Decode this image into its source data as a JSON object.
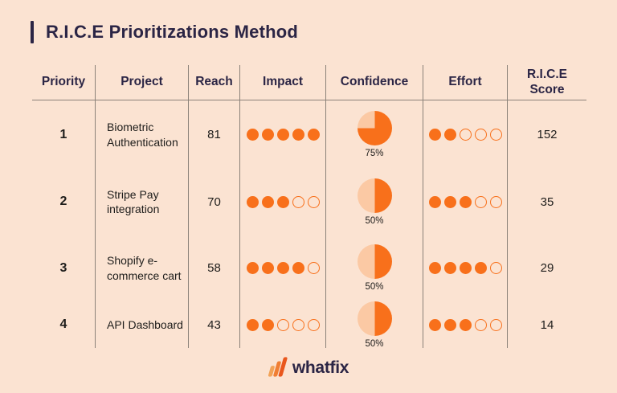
{
  "title": "R.I.C.E Prioritizations Method",
  "colors": {
    "background": "#FBE3D2",
    "navy": "#2B2545",
    "orange": "#F8701B",
    "pie_dark": "#F8701B",
    "pie_light": "#FBC9A4",
    "border": "#8B8279",
    "text_dark": "#1E1D1B",
    "logo_bars": [
      "#F2A358",
      "#F07E33",
      "#E9571D"
    ]
  },
  "footer": {
    "logo_text": "whatfix"
  },
  "chart_data": {
    "type": "table",
    "title": "R.I.C.E Prioritizations Method",
    "columns": [
      "Priority",
      "Project",
      "Reach",
      "Impact",
      "Confidence",
      "Effort",
      "R.I.C.E Score"
    ],
    "rating_scale": 5,
    "legend_note": "Impact and Effort rendered as 5-dot ratings; Confidence rendered as pie chart with percent label",
    "rows": [
      {
        "priority": "1",
        "project": "Biometric Authentication",
        "reach": "81",
        "impact_filled": 5,
        "impact_total": 5,
        "confidence_percent": 75,
        "confidence_label": "75%",
        "effort_filled": 2,
        "effort_total": 5,
        "score": "152"
      },
      {
        "priority": "2",
        "project": "Stripe Pay integration",
        "reach": "70",
        "impact_filled": 3,
        "impact_total": 5,
        "confidence_percent": 50,
        "confidence_label": "50%",
        "effort_filled": 3,
        "effort_total": 5,
        "score": "35"
      },
      {
        "priority": "3",
        "project": "Shopify e-commerce cart",
        "reach": "58",
        "impact_filled": 4,
        "impact_total": 5,
        "confidence_percent": 50,
        "confidence_label": "50%",
        "effort_filled": 4,
        "effort_total": 5,
        "score": "29"
      },
      {
        "priority": "4",
        "project": "API Dashboard",
        "reach": "43",
        "impact_filled": 2,
        "impact_total": 5,
        "confidence_percent": 50,
        "confidence_label": "50%",
        "effort_filled": 3,
        "effort_total": 5,
        "score": "14"
      }
    ]
  }
}
